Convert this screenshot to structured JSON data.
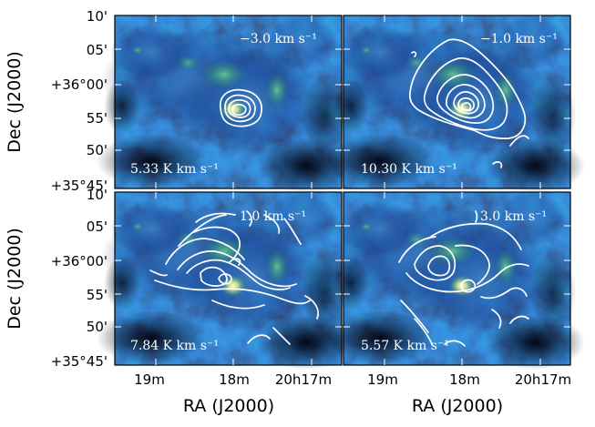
{
  "figure": {
    "xlabel": "RA (J2000)",
    "ylabel": "Dec (J2000)",
    "ra_ticks": [
      "19m",
      "18m",
      "20h17m"
    ],
    "dec_ticks": [
      "10'",
      "05'",
      "+36°00'",
      "55'",
      "50'",
      "+35°45'"
    ],
    "colors": {
      "background_dark": "#03071f",
      "emission_blue": "#1f4fa0",
      "emission_green": "#3fa869",
      "peak": "#f4f2b0",
      "contour": "#ffffff"
    }
  },
  "panels": [
    {
      "id": "top-left",
      "velocity_label": "−3.0 km s⁻¹",
      "intensity_label": "5.33 K km s⁻¹"
    },
    {
      "id": "top-right",
      "velocity_label": "−1.0 km s⁻¹",
      "intensity_label": "10.30 K km s⁻¹"
    },
    {
      "id": "bottom-left",
      "velocity_label": "1.0 km s⁻¹",
      "intensity_label": "7.84 K km s⁻¹"
    },
    {
      "id": "bottom-right",
      "velocity_label": "3.0 km s⁻¹",
      "intensity_label": "5.57 K km s⁻¹"
    }
  ]
}
